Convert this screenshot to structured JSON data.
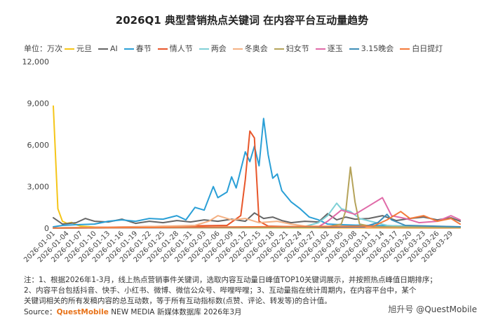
{
  "chart_data": {
    "type": "line",
    "title": "2026Q1 典型营销热点关键词 在内容平台互动量趋势",
    "unit_label": "单位：万次",
    "ylim": [
      0,
      12000
    ],
    "yticks": [
      "0",
      "3,000",
      "6,000",
      "9,000",
      "12,000"
    ],
    "grid": false,
    "legend_position": "top",
    "x_start": "2026-01-01",
    "x_end": "2026-03-31",
    "xticks": [
      "2026-01-01",
      "2026-01-04",
      "2026-01-07",
      "2026-01-10",
      "2026-01-13",
      "2026-01-16",
      "2026-01-19",
      "2026-01-22",
      "2026-01-25",
      "2026-01-28",
      "2026-01-31",
      "2026-02-03",
      "2026-02-06",
      "2026-02-09",
      "2026-02-12",
      "2026-02-15",
      "2026-02-18",
      "2026-02-21",
      "2026-02-24",
      "2026-02-27",
      "2026-03-02",
      "2026-03-05",
      "2026-03-08",
      "2026-03-11",
      "2026-03-14",
      "2026-03-17",
      "2026-03-20",
      "2026-03-23",
      "2026-03-26",
      "2026-03-29"
    ],
    "series": [
      {
        "name": "元旦",
        "color": "#f5c518",
        "points": [
          [
            "2026-01-01",
            8800
          ],
          [
            "2026-01-02",
            1400
          ],
          [
            "2026-01-03",
            500
          ],
          [
            "2026-01-04",
            350
          ],
          [
            "2026-01-05",
            420
          ],
          [
            "2026-01-06",
            250
          ],
          [
            "2026-01-07",
            150
          ],
          [
            "2026-01-10",
            80
          ],
          [
            "2026-01-20",
            40
          ],
          [
            "2026-02-10",
            30
          ],
          [
            "2026-03-31",
            20
          ]
        ]
      },
      {
        "name": "AI",
        "color": "#666666",
        "points": [
          [
            "2026-01-01",
            750
          ],
          [
            "2026-01-03",
            300
          ],
          [
            "2026-01-06",
            400
          ],
          [
            "2026-01-08",
            700
          ],
          [
            "2026-01-10",
            500
          ],
          [
            "2026-01-13",
            450
          ],
          [
            "2026-01-16",
            650
          ],
          [
            "2026-01-19",
            350
          ],
          [
            "2026-01-22",
            500
          ],
          [
            "2026-01-25",
            400
          ],
          [
            "2026-01-28",
            550
          ],
          [
            "2026-01-31",
            450
          ],
          [
            "2026-02-03",
            600
          ],
          [
            "2026-02-06",
            500
          ],
          [
            "2026-02-09",
            650
          ],
          [
            "2026-02-12",
            500
          ],
          [
            "2026-02-14",
            1100
          ],
          [
            "2026-02-16",
            700
          ],
          [
            "2026-02-18",
            800
          ],
          [
            "2026-02-20",
            550
          ],
          [
            "2026-02-22",
            400
          ],
          [
            "2026-02-25",
            500
          ],
          [
            "2026-02-28",
            450
          ],
          [
            "2026-03-02",
            1050
          ],
          [
            "2026-03-04",
            600
          ],
          [
            "2026-03-06",
            800
          ],
          [
            "2026-03-08",
            650
          ],
          [
            "2026-03-11",
            700
          ],
          [
            "2026-03-14",
            900
          ],
          [
            "2026-03-17",
            550
          ],
          [
            "2026-03-20",
            700
          ],
          [
            "2026-03-23",
            800
          ],
          [
            "2026-03-26",
            600
          ],
          [
            "2026-03-29",
            750
          ],
          [
            "2026-03-31",
            500
          ]
        ]
      },
      {
        "name": "春节",
        "color": "#2a9fd6",
        "points": [
          [
            "2026-01-01",
            100
          ],
          [
            "2026-01-03",
            200
          ],
          [
            "2026-01-06",
            250
          ],
          [
            "2026-01-10",
            300
          ],
          [
            "2026-01-13",
            500
          ],
          [
            "2026-01-16",
            600
          ],
          [
            "2026-01-19",
            500
          ],
          [
            "2026-01-22",
            700
          ],
          [
            "2026-01-25",
            650
          ],
          [
            "2026-01-28",
            900
          ],
          [
            "2026-01-30",
            600
          ],
          [
            "2026-02-01",
            1500
          ],
          [
            "2026-02-03",
            1300
          ],
          [
            "2026-02-05",
            3000
          ],
          [
            "2026-02-06",
            2200
          ],
          [
            "2026-02-08",
            2600
          ],
          [
            "2026-02-09",
            3700
          ],
          [
            "2026-02-10",
            2900
          ],
          [
            "2026-02-11",
            4200
          ],
          [
            "2026-02-12",
            5500
          ],
          [
            "2026-02-13",
            4800
          ],
          [
            "2026-02-14",
            5900
          ],
          [
            "2026-02-15",
            4500
          ],
          [
            "2026-02-16",
            7900
          ],
          [
            "2026-02-17",
            5300
          ],
          [
            "2026-02-18",
            3600
          ],
          [
            "2026-02-19",
            3900
          ],
          [
            "2026-02-20",
            2700
          ],
          [
            "2026-02-22",
            1900
          ],
          [
            "2026-02-24",
            1400
          ],
          [
            "2026-02-26",
            800
          ],
          [
            "2026-02-28",
            600
          ],
          [
            "2026-03-02",
            300
          ],
          [
            "2026-03-05",
            250
          ],
          [
            "2026-03-10",
            200
          ],
          [
            "2026-03-20",
            150
          ],
          [
            "2026-03-31",
            100
          ]
        ]
      },
      {
        "name": "情人节",
        "color": "#e8562a",
        "points": [
          [
            "2026-01-01",
            20
          ],
          [
            "2026-02-08",
            200
          ],
          [
            "2026-02-11",
            900
          ],
          [
            "2026-02-12",
            3500
          ],
          [
            "2026-02-13",
            7000
          ],
          [
            "2026-02-14",
            6500
          ],
          [
            "2026-02-15",
            500
          ],
          [
            "2026-02-17",
            150
          ],
          [
            "2026-03-01",
            60
          ],
          [
            "2026-03-31",
            30
          ]
        ]
      },
      {
        "name": "两会",
        "color": "#7fd0d6",
        "points": [
          [
            "2026-01-01",
            10
          ],
          [
            "2026-02-25",
            120
          ],
          [
            "2026-02-28",
            400
          ],
          [
            "2026-03-02",
            900
          ],
          [
            "2026-03-04",
            1800
          ],
          [
            "2026-03-05",
            1400
          ],
          [
            "2026-03-07",
            1200
          ],
          [
            "2026-03-09",
            700
          ],
          [
            "2026-03-12",
            450
          ],
          [
            "2026-03-15",
            200
          ],
          [
            "2026-03-20",
            100
          ],
          [
            "2026-03-31",
            60
          ]
        ]
      },
      {
        "name": "冬奥会",
        "color": "#f4b183",
        "points": [
          [
            "2026-01-01",
            20
          ],
          [
            "2026-01-20",
            100
          ],
          [
            "2026-02-01",
            200
          ],
          [
            "2026-02-04",
            500
          ],
          [
            "2026-02-06",
            900
          ],
          [
            "2026-02-09",
            600
          ],
          [
            "2026-02-12",
            700
          ],
          [
            "2026-02-15",
            400
          ],
          [
            "2026-02-19",
            500
          ],
          [
            "2026-02-22",
            300
          ],
          [
            "2026-02-25",
            150
          ],
          [
            "2026-03-05",
            80
          ],
          [
            "2026-03-31",
            40
          ]
        ]
      },
      {
        "name": "妇女节",
        "color": "#b5a35a",
        "points": [
          [
            "2026-01-01",
            10
          ],
          [
            "2026-03-02",
            100
          ],
          [
            "2026-03-05",
            300
          ],
          [
            "2026-03-06",
            1300
          ],
          [
            "2026-03-07",
            4400
          ],
          [
            "2026-03-08",
            1900
          ],
          [
            "2026-03-09",
            300
          ],
          [
            "2026-03-12",
            100
          ],
          [
            "2026-03-31",
            50
          ]
        ]
      },
      {
        "name": "逐玉",
        "color": "#e06aa8",
        "points": [
          [
            "2026-01-01",
            10
          ],
          [
            "2026-02-28",
            100
          ],
          [
            "2026-03-02",
            500
          ],
          [
            "2026-03-05",
            1300
          ],
          [
            "2026-03-08",
            1000
          ],
          [
            "2026-03-11",
            1600
          ],
          [
            "2026-03-14",
            2200
          ],
          [
            "2026-03-16",
            900
          ],
          [
            "2026-03-19",
            700
          ],
          [
            "2026-03-22",
            400
          ],
          [
            "2026-03-26",
            500
          ],
          [
            "2026-03-29",
            900
          ],
          [
            "2026-03-31",
            600
          ]
        ]
      },
      {
        "name": "3.15晚会",
        "color": "#3e8eb8",
        "points": [
          [
            "2026-01-01",
            10
          ],
          [
            "2026-03-10",
            100
          ],
          [
            "2026-03-13",
            400
          ],
          [
            "2026-03-14",
            700
          ],
          [
            "2026-03-15",
            1000
          ],
          [
            "2026-03-16",
            600
          ],
          [
            "2026-03-19",
            200
          ],
          [
            "2026-03-31",
            100
          ]
        ]
      },
      {
        "name": "白日提灯",
        "color": "#f47a3a",
        "points": [
          [
            "2026-01-01",
            10
          ],
          [
            "2026-03-12",
            150
          ],
          [
            "2026-03-15",
            600
          ],
          [
            "2026-03-18",
            1200
          ],
          [
            "2026-03-20",
            700
          ],
          [
            "2026-03-23",
            900
          ],
          [
            "2026-03-26",
            500
          ],
          [
            "2026-03-29",
            700
          ],
          [
            "2026-03-31",
            300
          ]
        ]
      }
    ]
  },
  "notes": {
    "line1": "注：1、根据2026年1-3月，线上热点营销事件关键词，选取内容互动量日峰值TOP10关键词展示，并按照热点峰值日期排序；",
    "line2": "2、内容平台包括抖音、快手、小红书、微博、微信公众号、哔哩哔哩；3、互动量指在统计周期内，在内容平台中，某个",
    "line3": "关键词相关的所有发稿内容的总互动数，等于所有互动指标数(点赞、评论、转发等)的合计值。"
  },
  "source": {
    "prefix": "Source：",
    "brand": "QuestMobile",
    "rest": " NEW MEDIA 新媒体数据库 2026年3月"
  },
  "watermark": {
    "left": "旭升号",
    "right": "@QuestMobile"
  }
}
